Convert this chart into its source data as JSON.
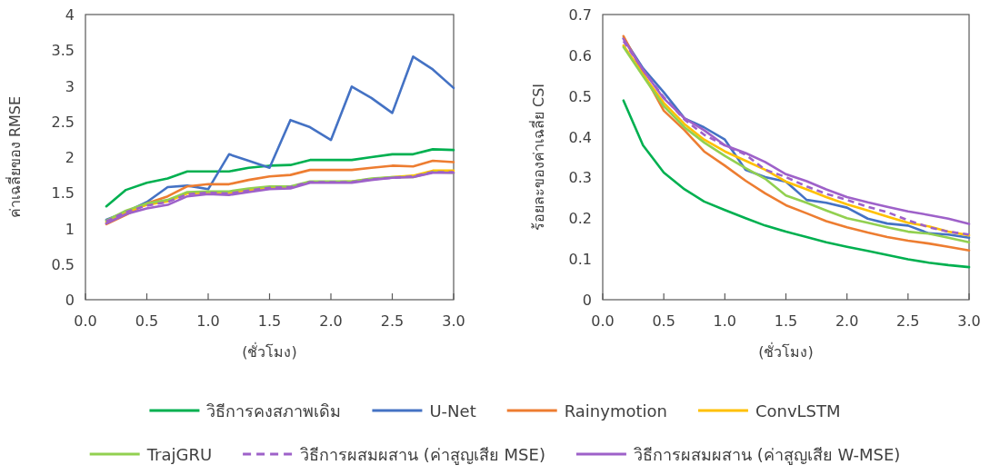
{
  "chart_data": [
    {
      "type": "line",
      "xlabel": "(ชั่วโมง)",
      "ylabel": "ค่าเฉลี่ยของ RMSE",
      "legend": "bottom",
      "line_style": "solid",
      "x": [
        0.17,
        0.33,
        0.5,
        0.67,
        0.83,
        1.0,
        1.17,
        1.33,
        1.5,
        1.67,
        1.83,
        2.0,
        2.17,
        2.33,
        2.5,
        2.67,
        2.83,
        3.0
      ],
      "xlim": [
        0,
        3
      ],
      "xticks": [
        {
          "value": 0,
          "label": "0.0"
        },
        {
          "value": 0.5,
          "label": "0.5"
        },
        {
          "value": 1,
          "label": "1.0"
        },
        {
          "value": 1.5,
          "label": "1.5"
        },
        {
          "value": 2,
          "label": "2.0"
        },
        {
          "value": 2.5,
          "label": "2.5"
        },
        {
          "value": 3,
          "label": "3.0"
        }
      ],
      "ylim": [
        0,
        4
      ],
      "yticks": [
        0,
        0.5,
        1,
        1.5,
        2,
        2.5,
        3,
        3.5,
        4
      ],
      "series": [
        {
          "name": "วิธีการคงสภาพเดิม",
          "color": "#00b050",
          "values": [
            1.31,
            1.54,
            1.64,
            1.7,
            1.8,
            1.8,
            1.8,
            1.85,
            1.88,
            1.89,
            1.96,
            1.96,
            1.96,
            2.0,
            2.04,
            2.04,
            2.11,
            2.1
          ]
        },
        {
          "name": "U-Net",
          "color": "#4472c4",
          "values": [
            1.12,
            1.23,
            1.37,
            1.58,
            1.6,
            1.55,
            2.04,
            1.95,
            1.85,
            2.52,
            2.42,
            2.24,
            2.99,
            2.83,
            2.62,
            3.41,
            3.23,
            2.97
          ]
        },
        {
          "name": "Rainymotion",
          "color": "#ed7d31",
          "values": [
            1.06,
            1.19,
            1.35,
            1.45,
            1.59,
            1.62,
            1.62,
            1.68,
            1.73,
            1.75,
            1.82,
            1.82,
            1.82,
            1.85,
            1.88,
            1.87,
            1.95,
            1.93
          ]
        },
        {
          "name": "ConvLSTM",
          "color": "#ffc000",
          "values": [
            1.09,
            1.23,
            1.33,
            1.38,
            1.49,
            1.5,
            1.5,
            1.54,
            1.57,
            1.58,
            1.65,
            1.65,
            1.66,
            1.69,
            1.72,
            1.74,
            1.81,
            1.81
          ]
        },
        {
          "name": "TrajGRU",
          "color": "#92d050",
          "values": [
            1.11,
            1.25,
            1.35,
            1.4,
            1.51,
            1.52,
            1.52,
            1.56,
            1.59,
            1.59,
            1.66,
            1.66,
            1.66,
            1.7,
            1.72,
            1.72,
            1.79,
            1.78
          ]
        },
        {
          "name": "วิธีการผสมผสาน (ค่าสูญเสีย MSE)",
          "color": "#9e61c9",
          "line_style": "dashed",
          "values": [
            1.1,
            1.23,
            1.32,
            1.37,
            1.48,
            1.5,
            1.49,
            1.53,
            1.57,
            1.58,
            1.65,
            1.65,
            1.65,
            1.69,
            1.71,
            1.73,
            1.79,
            1.79
          ]
        },
        {
          "name": "วิธีการผสมผสาน (ค่าสูญเสีย W-MSE)",
          "color": "#9e61c9",
          "values": [
            1.07,
            1.2,
            1.28,
            1.33,
            1.45,
            1.48,
            1.47,
            1.51,
            1.55,
            1.56,
            1.64,
            1.64,
            1.64,
            1.68,
            1.71,
            1.72,
            1.78,
            1.78
          ]
        }
      ]
    },
    {
      "type": "line",
      "xlabel": "(ชั่วโมง)",
      "ylabel": "ร้อยละของค่าเฉลี่ย CSI",
      "line_style": "solid",
      "x": [
        0.17,
        0.33,
        0.5,
        0.67,
        0.83,
        1.0,
        1.17,
        1.33,
        1.5,
        1.67,
        1.83,
        2.0,
        2.17,
        2.33,
        2.5,
        2.67,
        2.83,
        3.0
      ],
      "xlim": [
        0,
        3
      ],
      "xticks": [
        {
          "value": 0,
          "label": "0.0"
        },
        {
          "value": 0.5,
          "label": "0.5"
        },
        {
          "value": 1,
          "label": "1.0"
        },
        {
          "value": 1.5,
          "label": "1.5"
        },
        {
          "value": 2,
          "label": "2.0"
        },
        {
          "value": 2.5,
          "label": "2.5"
        },
        {
          "value": 3,
          "label": "3.0"
        }
      ],
      "ylim": [
        0,
        0.7
      ],
      "yticks": [
        0,
        0.1,
        0.2,
        0.3,
        0.4,
        0.5,
        0.6,
        0.7
      ],
      "series": [
        {
          "color": "#00b050",
          "values": [
            0.489,
            0.379,
            0.312,
            0.271,
            0.241,
            0.22,
            0.2,
            0.182,
            0.167,
            0.154,
            0.141,
            0.13,
            0.12,
            0.11,
            0.099,
            0.091,
            0.085,
            0.08
          ]
        },
        {
          "color": "#4472c4",
          "values": [
            0.642,
            0.568,
            0.509,
            0.445,
            0.423,
            0.393,
            0.319,
            0.301,
            0.29,
            0.245,
            0.238,
            0.226,
            0.199,
            0.187,
            0.182,
            0.163,
            0.16,
            0.152
          ]
        },
        {
          "color": "#ed7d31",
          "values": [
            0.647,
            0.557,
            0.464,
            0.416,
            0.364,
            0.329,
            0.292,
            0.261,
            0.232,
            0.212,
            0.193,
            0.178,
            0.165,
            0.154,
            0.145,
            0.138,
            0.13,
            0.121
          ]
        },
        {
          "color": "#ffc000",
          "values": [
            0.624,
            0.553,
            0.483,
            0.431,
            0.393,
            0.364,
            0.341,
            0.319,
            0.29,
            0.271,
            0.252,
            0.234,
            0.219,
            0.204,
            0.189,
            0.18,
            0.167,
            0.158
          ]
        },
        {
          "color": "#92d050",
          "values": [
            0.62,
            0.549,
            0.475,
            0.423,
            0.386,
            0.353,
            0.323,
            0.297,
            0.256,
            0.238,
            0.219,
            0.2,
            0.189,
            0.178,
            0.167,
            0.162,
            0.152,
            0.141
          ]
        },
        {
          "color": "#9e61c9",
          "line_style": "dashed",
          "values": [
            0.635,
            0.564,
            0.497,
            0.442,
            0.405,
            0.379,
            0.356,
            0.319,
            0.301,
            0.278,
            0.26,
            0.245,
            0.228,
            0.215,
            0.195,
            0.178,
            0.167,
            0.16
          ]
        },
        {
          "color": "#9e61c9",
          "values": [
            0.64,
            0.564,
            0.494,
            0.445,
            0.416,
            0.379,
            0.36,
            0.338,
            0.308,
            0.291,
            0.271,
            0.252,
            0.239,
            0.228,
            0.217,
            0.208,
            0.199,
            0.186
          ]
        }
      ]
    }
  ]
}
